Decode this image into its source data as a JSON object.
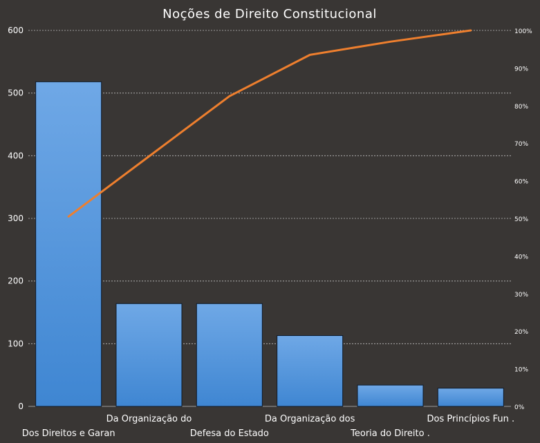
{
  "chart_data": {
    "type": "bar",
    "title": "Noções de Direito Constitucional",
    "categories": [
      "Dos Direitos e Garan",
      "Da Organização do",
      "Defesa do Estado",
      "Da Organização dos",
      "Teoria do Direito .",
      "Dos Princípios Fun ."
    ],
    "series": [
      {
        "type": "bar",
        "values": [
          518,
          164,
          164,
          113,
          34,
          29
        ]
      },
      {
        "type": "line",
        "axis": "right",
        "values": [
          50.5,
          66.5,
          82.5,
          93.5,
          97,
          100
        ]
      }
    ],
    "ylim": [
      0,
      600
    ],
    "yticks": [
      "0",
      "100",
      "200",
      "300",
      "400",
      "500",
      "600"
    ],
    "y2lim": [
      0,
      100
    ],
    "y2ticks": [
      "0%",
      "10%",
      "20%",
      "30%",
      "40%",
      "50%",
      "60%",
      "70%",
      "80%",
      "90%",
      "100%"
    ],
    "grid": true,
    "colors": {
      "background": "#393634",
      "bar": "#4a8fd8",
      "bar_light": "#6fa8e6",
      "line": "#ee7f2e",
      "grid": "#bfbfbf",
      "text": "#ffffff"
    }
  }
}
